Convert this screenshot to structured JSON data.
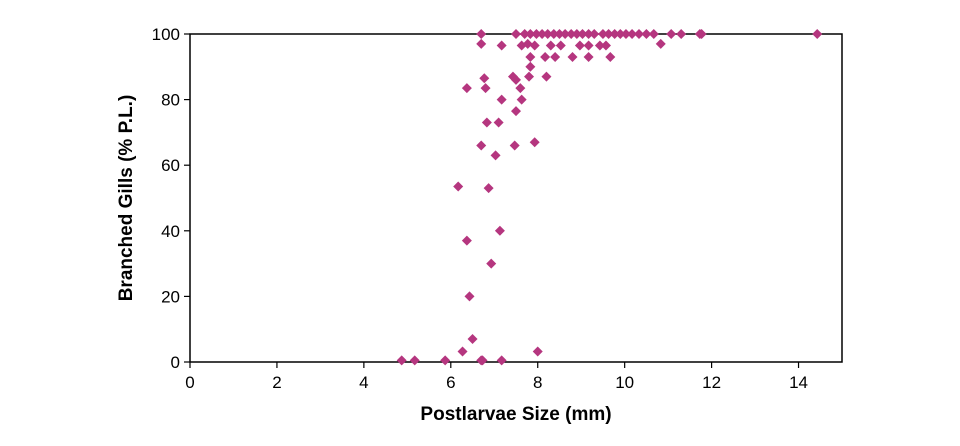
{
  "chart_data": {
    "type": "scatter",
    "title": "",
    "xlabel": "Postlarvae Size (mm)",
    "ylabel": "Branched Gills (% P.L.)",
    "xlim": [
      0,
      15
    ],
    "ylim": [
      0,
      100
    ],
    "x_ticks": [
      "0",
      "2",
      "4",
      "6",
      "8",
      "10",
      "12",
      "14"
    ],
    "y_ticks": [
      "0",
      "20",
      "40",
      "60",
      "80",
      "100"
    ],
    "grid": false,
    "legend": "none",
    "marker": "diamond",
    "marker_color": "#b5367f",
    "points": [
      [
        4.87,
        0.5
      ],
      [
        5.17,
        0.5
      ],
      [
        5.87,
        0.5
      ],
      [
        6.7,
        0.5
      ],
      [
        6.73,
        0.5
      ],
      [
        7.17,
        0.5
      ],
      [
        6.27,
        3.2
      ],
      [
        6.5,
        7
      ],
      [
        8.0,
        3.2
      ],
      [
        6.43,
        20
      ],
      [
        6.93,
        30
      ],
      [
        6.37,
        37
      ],
      [
        7.13,
        40
      ],
      [
        6.17,
        53.5
      ],
      [
        6.87,
        53
      ],
      [
        6.7,
        66
      ],
      [
        7.03,
        63
      ],
      [
        7.47,
        66
      ],
      [
        7.93,
        67
      ],
      [
        6.83,
        73
      ],
      [
        7.1,
        73
      ],
      [
        6.37,
        83.5
      ],
      [
        6.8,
        83.5
      ],
      [
        6.77,
        86.5
      ],
      [
        7.17,
        80
      ],
      [
        7.5,
        76.5
      ],
      [
        7.43,
        87
      ],
      [
        7.5,
        86
      ],
      [
        7.6,
        83.5
      ],
      [
        7.63,
        80
      ],
      [
        7.8,
        87
      ],
      [
        7.83,
        90
      ],
      [
        8.2,
        87
      ],
      [
        6.7,
        97
      ],
      [
        7.17,
        96.5
      ],
      [
        7.63,
        96.5
      ],
      [
        7.77,
        97
      ],
      [
        7.83,
        93
      ],
      [
        7.93,
        96.5
      ],
      [
        8.17,
        93
      ],
      [
        8.3,
        96.5
      ],
      [
        8.4,
        93
      ],
      [
        8.53,
        96.5
      ],
      [
        8.8,
        93
      ],
      [
        8.97,
        96.5
      ],
      [
        9.17,
        93
      ],
      [
        9.17,
        96.5
      ],
      [
        9.43,
        96.5
      ],
      [
        9.57,
        96.5
      ],
      [
        9.67,
        93
      ],
      [
        10.83,
        97
      ],
      [
        6.7,
        100
      ],
      [
        7.5,
        100
      ],
      [
        7.7,
        100
      ],
      [
        7.83,
        100
      ],
      [
        7.97,
        100
      ],
      [
        8.1,
        100
      ],
      [
        8.23,
        100
      ],
      [
        8.37,
        100
      ],
      [
        8.5,
        100
      ],
      [
        8.63,
        100
      ],
      [
        8.77,
        100
      ],
      [
        8.9,
        100
      ],
      [
        9.03,
        100
      ],
      [
        9.17,
        100
      ],
      [
        9.3,
        100
      ],
      [
        9.5,
        100
      ],
      [
        9.63,
        100
      ],
      [
        9.77,
        100
      ],
      [
        9.9,
        100
      ],
      [
        10.03,
        100
      ],
      [
        10.17,
        100
      ],
      [
        10.33,
        100
      ],
      [
        10.5,
        100
      ],
      [
        10.67,
        100
      ],
      [
        11.07,
        100
      ],
      [
        11.3,
        100
      ],
      [
        11.73,
        100
      ],
      [
        11.77,
        100
      ],
      [
        14.43,
        100
      ]
    ]
  }
}
